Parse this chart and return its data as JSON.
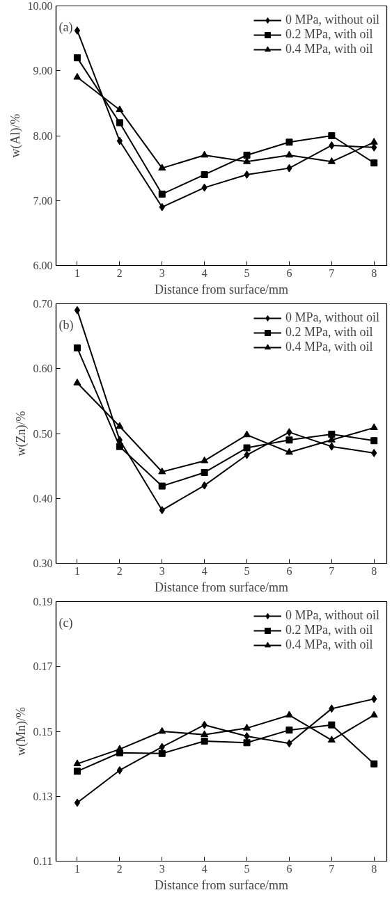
{
  "chart_data": [
    {
      "type": "line",
      "annotations": [
        "(a)"
      ],
      "xlabel": "Distance from surface/mm",
      "ylabel": "w(Al)/%",
      "x": [
        1,
        2,
        3,
        4,
        5,
        6,
        7,
        8
      ],
      "xlim": [
        0.5,
        8.3
      ],
      "xticks": [
        1,
        2,
        3,
        4,
        5,
        6,
        7,
        8
      ],
      "ylim": [
        6,
        10
      ],
      "yticks": [
        {
          "value": 6,
          "label": "6.00"
        },
        {
          "value": 7,
          "label": "7.00"
        },
        {
          "value": 8,
          "label": "8.00"
        },
        {
          "value": 9,
          "label": "9.00"
        },
        {
          "value": 10,
          "label": "10.00"
        }
      ],
      "grid": false,
      "legend": "top right",
      "line_style": "solid",
      "series": [
        {
          "name": "0 MPa, without oil",
          "color": "#000000",
          "marker": "diamond",
          "values": [
            9.62,
            7.92,
            6.9,
            7.2,
            7.4,
            7.5,
            7.85,
            7.82
          ]
        },
        {
          "name": "0.2 MPa, with oil",
          "color": "#000000",
          "marker": "square",
          "values": [
            9.2,
            8.2,
            7.1,
            7.4,
            7.7,
            7.9,
            8.0,
            7.58
          ]
        },
        {
          "name": "0.4 MPa, with oil",
          "color": "#000000",
          "marker": "triangle",
          "values": [
            8.9,
            8.4,
            7.5,
            7.7,
            7.6,
            7.7,
            7.6,
            7.9
          ]
        }
      ]
    },
    {
      "type": "line",
      "annotations": [
        "(b)"
      ],
      "xlabel": "Distance from surface/mm",
      "ylabel": "w(Zn)/%",
      "x": [
        1,
        2,
        3,
        4,
        5,
        6,
        7,
        8
      ],
      "xlim": [
        0.5,
        8.3
      ],
      "xticks": [
        1,
        2,
        3,
        4,
        5,
        6,
        7,
        8
      ],
      "ylim": [
        0.3,
        0.7
      ],
      "yticks": [
        {
          "value": 0.3,
          "label": "0.30"
        },
        {
          "value": 0.4,
          "label": "0.40"
        },
        {
          "value": 0.5,
          "label": "0.50"
        },
        {
          "value": 0.6,
          "label": "0.60"
        },
        {
          "value": 0.7,
          "label": "0.70"
        }
      ],
      "grid": false,
      "legend": "top right",
      "line_style": "solid",
      "series": [
        {
          "name": "0 MPa, without oil",
          "color": "#000000",
          "marker": "diamond",
          "values": [
            0.69,
            0.49,
            0.382,
            0.42,
            0.467,
            0.502,
            0.48,
            0.47
          ]
        },
        {
          "name": "0.2 MPa, with oil",
          "color": "#000000",
          "marker": "square",
          "values": [
            0.632,
            0.48,
            0.419,
            0.44,
            0.478,
            0.49,
            0.499,
            0.489
          ]
        },
        {
          "name": "0.4 MPa, with oil",
          "color": "#000000",
          "marker": "triangle",
          "values": [
            0.578,
            0.511,
            0.441,
            0.458,
            0.498,
            0.471,
            0.49,
            0.509
          ]
        }
      ]
    },
    {
      "type": "line",
      "annotations": [
        "(c)"
      ],
      "xlabel": "Distance from surface/mm",
      "ylabel": "w(Mn)/%",
      "x": [
        1,
        2,
        3,
        4,
        5,
        6,
        7,
        8
      ],
      "xlim": [
        0.5,
        8.3
      ],
      "xticks": [
        1,
        2,
        3,
        4,
        5,
        6,
        7,
        8
      ],
      "ylim": [
        0.11,
        0.19
      ],
      "yticks": [
        {
          "value": 0.11,
          "label": "0.11"
        },
        {
          "value": 0.13,
          "label": "0.13"
        },
        {
          "value": 0.15,
          "label": "0.15"
        },
        {
          "value": 0.17,
          "label": "0.17"
        },
        {
          "value": 0.19,
          "label": "0.19"
        }
      ],
      "grid": false,
      "legend": "top right",
      "line_style": "solid",
      "series": [
        {
          "name": "0 MPa, without oil",
          "color": "#000000",
          "marker": "diamond",
          "values": [
            0.128,
            0.138,
            0.1452,
            0.152,
            0.1485,
            0.1463,
            0.157,
            0.16
          ]
        },
        {
          "name": "0.2 MPa, with oil",
          "color": "#000000",
          "marker": "square",
          "values": [
            0.1377,
            0.1434,
            0.1432,
            0.147,
            0.1465,
            0.1504,
            0.152,
            0.14
          ]
        },
        {
          "name": "0.4 MPa, with oil",
          "color": "#000000",
          "marker": "triangle",
          "values": [
            0.14,
            0.1445,
            0.15,
            0.149,
            0.151,
            0.155,
            0.1473,
            0.155
          ]
        }
      ]
    }
  ]
}
